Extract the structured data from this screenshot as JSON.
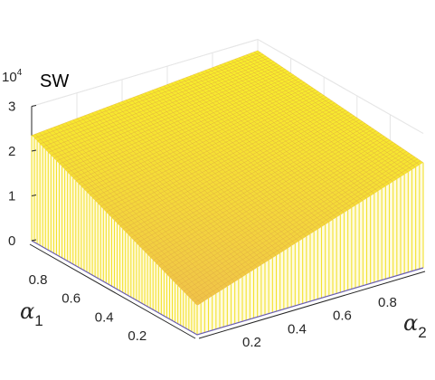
{
  "chart_data": {
    "type": "surface",
    "title": "SW",
    "exponent_label": {
      "base": "10",
      "power": "4"
    },
    "x_axis": {
      "name": "α",
      "subscript": "2",
      "range": [
        0,
        1
      ],
      "ticks": [
        "0.2",
        "0.4",
        "0.6",
        "0.8"
      ]
    },
    "y_axis": {
      "name": "α",
      "subscript": "1",
      "range": [
        0,
        1
      ],
      "ticks": [
        "0.2",
        "0.4",
        "0.6",
        "0.8"
      ]
    },
    "z_axis": {
      "range": [
        0,
        30000
      ],
      "ticks": [
        "0",
        "1",
        "2",
        "3"
      ]
    },
    "surface": {
      "description_points": [
        {
          "alpha1": 1,
          "alpha2": 0,
          "SW": 23500
        },
        {
          "alpha1": 0,
          "alpha2": 1,
          "SW": 23500
        },
        {
          "alpha1": 1,
          "alpha2": 1,
          "SW": 27500
        },
        {
          "alpha1": 0,
          "alpha2": 0,
          "SW": 6500
        }
      ],
      "shape": "SW = 6500 + 17000*(alpha1 + alpha2) - 13000*alpha1*alpha2"
    },
    "colors": {
      "high": "#f5ef2a",
      "mid": "#f9d83a",
      "low": "#f0c24a",
      "grid": "#e6e6e6",
      "axis": "#262626"
    },
    "grid": true
  }
}
